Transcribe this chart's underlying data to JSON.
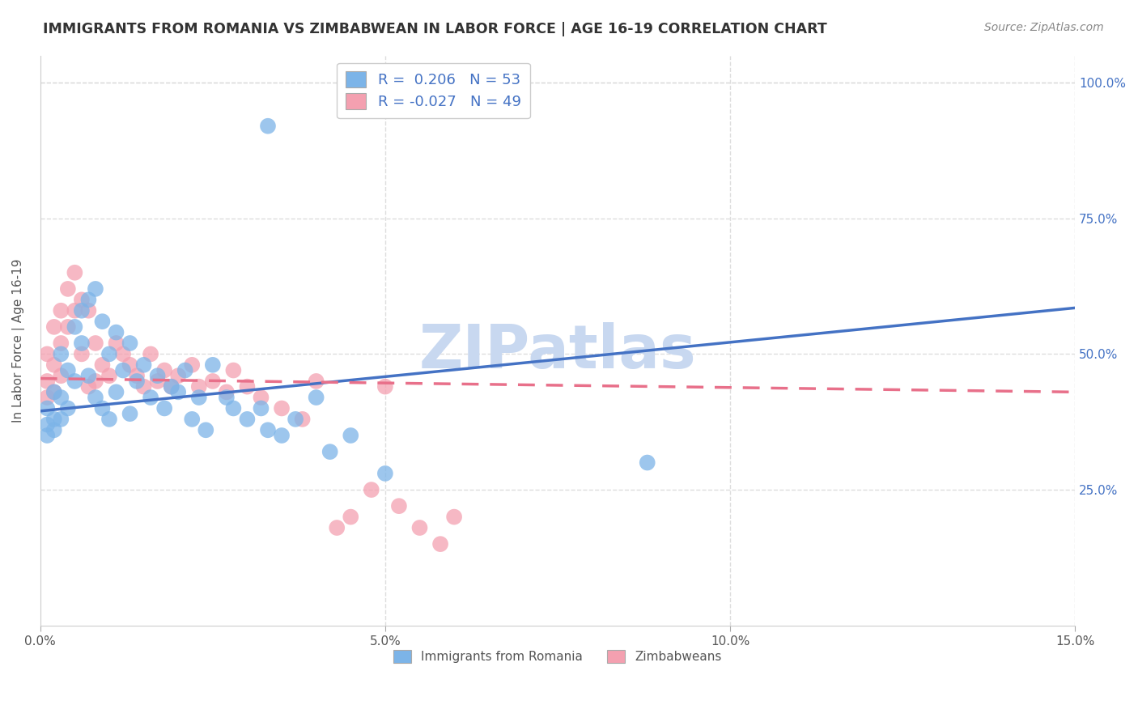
{
  "title": "IMMIGRANTS FROM ROMANIA VS ZIMBABWEAN IN LABOR FORCE | AGE 16-19 CORRELATION CHART",
  "source_text": "Source: ZipAtlas.com",
  "ylabel": "In Labor Force | Age 16-19",
  "xlim": [
    0.0,
    0.15
  ],
  "ylim": [
    0.0,
    1.05
  ],
  "xtick_labels": [
    "0.0%",
    "5.0%",
    "10.0%",
    "15.0%"
  ],
  "xtick_vals": [
    0.0,
    0.05,
    0.1,
    0.15
  ],
  "ytick_labels_right": [
    "25.0%",
    "50.0%",
    "75.0%",
    "100.0%"
  ],
  "ytick_vals_right": [
    0.25,
    0.5,
    0.75,
    1.0
  ],
  "grid_color": "#dddddd",
  "background_color": "#ffffff",
  "romania_color": "#7cb4e8",
  "zimbabwe_color": "#f4a0b0",
  "romania_line_color": "#4472c4",
  "zimbabwe_line_color": "#e8708a",
  "legend_R_romania": "0.206",
  "legend_N_romania": "53",
  "legend_R_zimbabwe": "-0.027",
  "legend_N_zimbabwe": "49",
  "watermark_text": "ZIPatlas",
  "watermark_color": "#c8d8f0",
  "legend_label_romania": "Immigrants from Romania",
  "legend_label_zimbabwe": "Zimbabweans",
  "romania_x": [
    0.001,
    0.001,
    0.001,
    0.002,
    0.002,
    0.002,
    0.003,
    0.003,
    0.003,
    0.004,
    0.004,
    0.005,
    0.005,
    0.006,
    0.006,
    0.007,
    0.007,
    0.008,
    0.008,
    0.009,
    0.009,
    0.01,
    0.01,
    0.011,
    0.011,
    0.012,
    0.013,
    0.013,
    0.014,
    0.015,
    0.016,
    0.017,
    0.018,
    0.019,
    0.02,
    0.021,
    0.022,
    0.023,
    0.024,
    0.025,
    0.027,
    0.028,
    0.03,
    0.032,
    0.033,
    0.035,
    0.037,
    0.04,
    0.042,
    0.045,
    0.05,
    0.088,
    0.033
  ],
  "romania_y": [
    0.4,
    0.37,
    0.35,
    0.43,
    0.38,
    0.36,
    0.5,
    0.42,
    0.38,
    0.47,
    0.4,
    0.55,
    0.45,
    0.58,
    0.52,
    0.6,
    0.46,
    0.62,
    0.42,
    0.56,
    0.4,
    0.5,
    0.38,
    0.54,
    0.43,
    0.47,
    0.52,
    0.39,
    0.45,
    0.48,
    0.42,
    0.46,
    0.4,
    0.44,
    0.43,
    0.47,
    0.38,
    0.42,
    0.36,
    0.48,
    0.42,
    0.4,
    0.38,
    0.4,
    0.36,
    0.35,
    0.38,
    0.42,
    0.32,
    0.35,
    0.28,
    0.3,
    0.92
  ],
  "zimbabwe_x": [
    0.001,
    0.001,
    0.001,
    0.002,
    0.002,
    0.002,
    0.003,
    0.003,
    0.003,
    0.004,
    0.004,
    0.005,
    0.005,
    0.006,
    0.006,
    0.007,
    0.007,
    0.008,
    0.008,
    0.009,
    0.01,
    0.011,
    0.012,
    0.013,
    0.014,
    0.015,
    0.016,
    0.017,
    0.018,
    0.019,
    0.02,
    0.022,
    0.023,
    0.025,
    0.027,
    0.028,
    0.03,
    0.032,
    0.035,
    0.038,
    0.04,
    0.043,
    0.045,
    0.048,
    0.05,
    0.052,
    0.055,
    0.058,
    0.06
  ],
  "zimbabwe_y": [
    0.5,
    0.45,
    0.42,
    0.55,
    0.48,
    0.43,
    0.58,
    0.52,
    0.46,
    0.62,
    0.55,
    0.65,
    0.58,
    0.6,
    0.5,
    0.58,
    0.44,
    0.52,
    0.45,
    0.48,
    0.46,
    0.52,
    0.5,
    0.48,
    0.46,
    0.44,
    0.5,
    0.45,
    0.47,
    0.44,
    0.46,
    0.48,
    0.44,
    0.45,
    0.43,
    0.47,
    0.44,
    0.42,
    0.4,
    0.38,
    0.45,
    0.18,
    0.2,
    0.25,
    0.44,
    0.22,
    0.18,
    0.15,
    0.2
  ],
  "romania_line_x": [
    0.0,
    0.15
  ],
  "romania_line_y": [
    0.395,
    0.585
  ],
  "zimbabwe_line_x": [
    0.0,
    0.15
  ],
  "zimbabwe_line_y": [
    0.455,
    0.43
  ]
}
